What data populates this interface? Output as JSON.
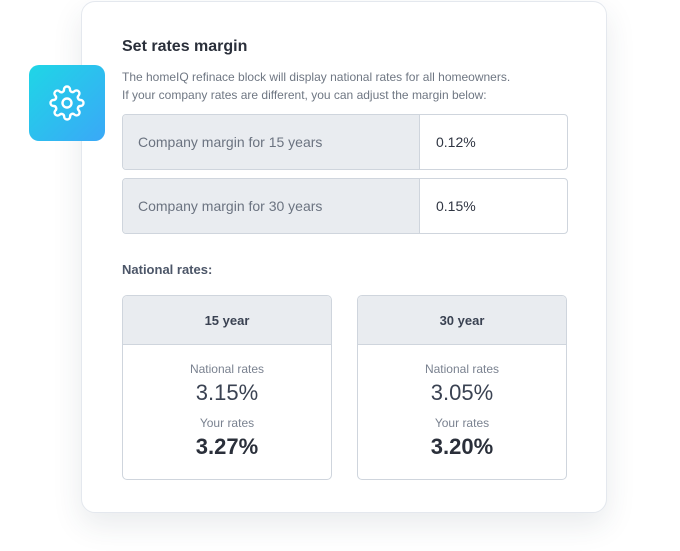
{
  "icon": "gear-icon",
  "colors": {
    "badge_start": "#1fd6e6",
    "badge_end": "#3aa8f7"
  },
  "header": {
    "title": "Set rates margin",
    "desc_line1": "The homeIQ refinace block will display national rates for all homeowners.",
    "desc_line2": "If your company rates are different, you can adjust the margin below:"
  },
  "margins": [
    {
      "label": "Company margin for 15 years",
      "value": "0.12%"
    },
    {
      "label": "Company margin for 30 years",
      "value": "0.15%"
    }
  ],
  "national": {
    "section_label": "National rates:",
    "boxes": [
      {
        "term": "15 year",
        "national_label": "National rates",
        "national_value": "3.15%",
        "your_label": "Your rates",
        "your_value": "3.27%"
      },
      {
        "term": "30 year",
        "national_label": "National rates",
        "national_value": "3.05%",
        "your_label": "Your rates",
        "your_value": "3.20%"
      }
    ]
  }
}
